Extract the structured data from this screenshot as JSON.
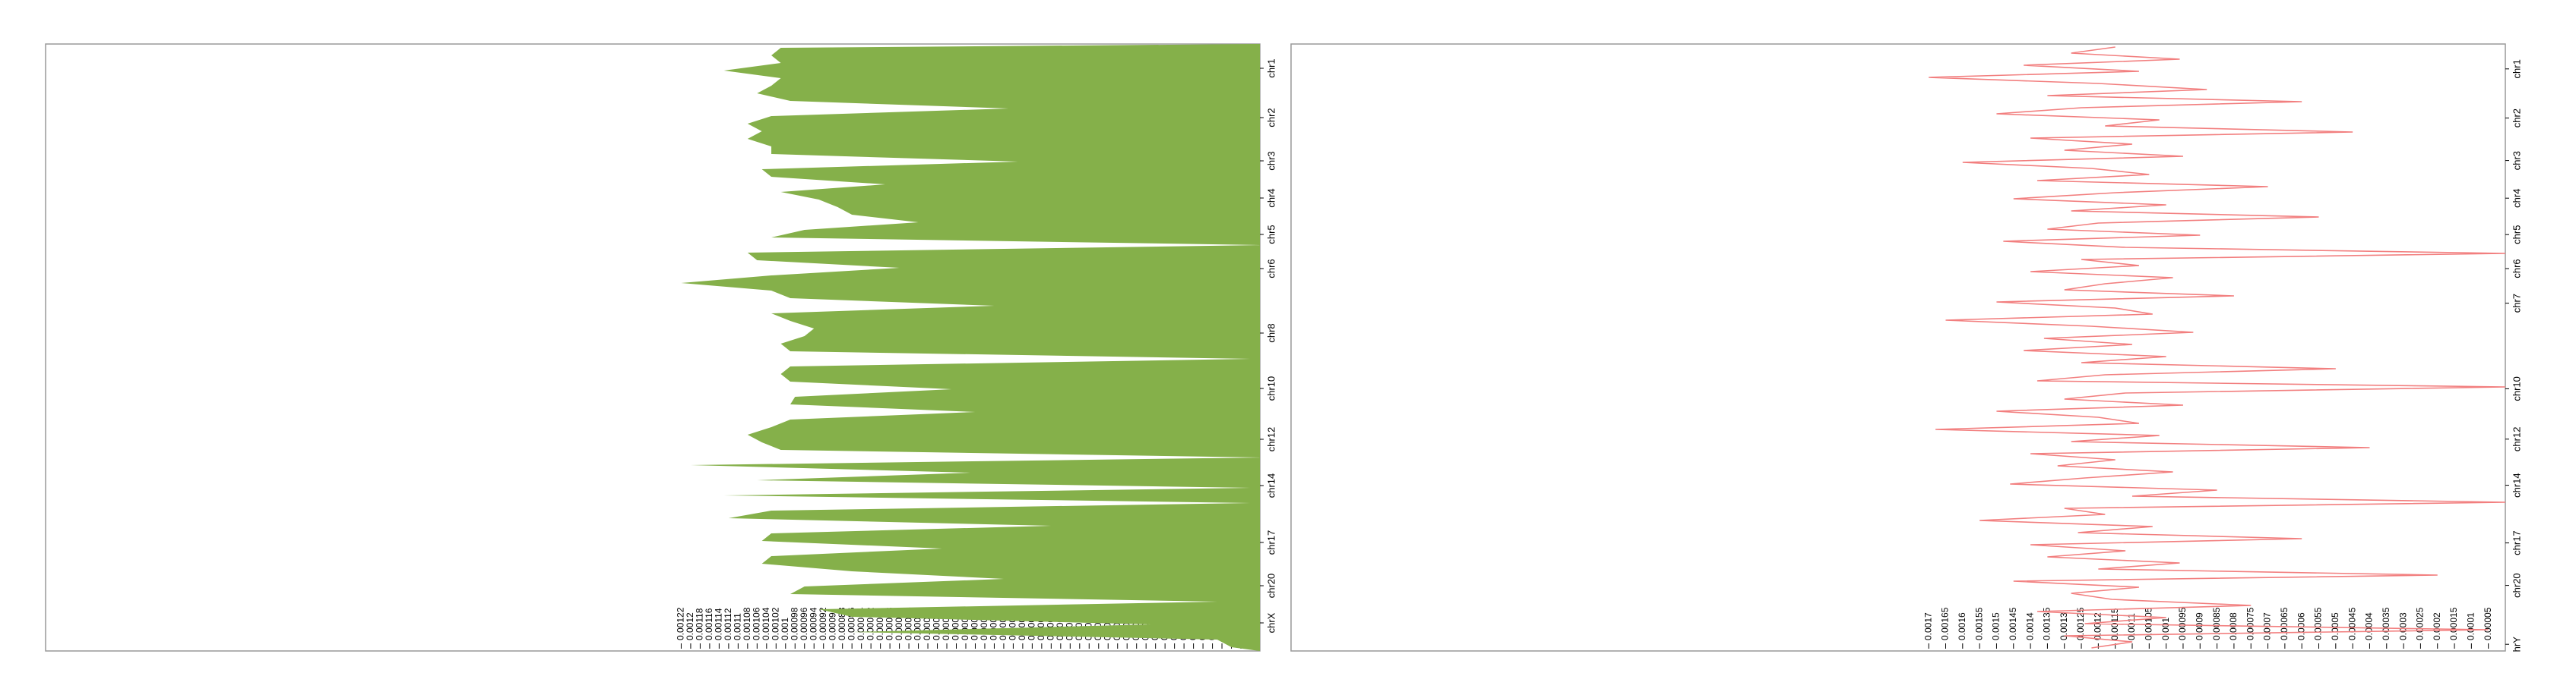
{
  "chart_data": [
    {
      "type": "area",
      "series": [
        {
          "color": "#85b04a",
          "values": [
            0.00101,
            0.00103,
            0.00101,
            0.00113,
            0.00101,
            0.00103,
            0.00106,
            0.00099,
            0.00053,
            0.00103,
            0.00108,
            0.00105,
            0.00108,
            0.00103,
            0.00103,
            0.00051,
            0.00105,
            0.00103,
            0.00079,
            0.00101,
            0.00093,
            0.00089,
            0.00086,
            0.00072,
            0.00096,
            0.00103,
            0,
            0.00108,
            0.00106,
            0.00076,
            0.00103,
            0.00122,
            0.00103,
            0.00099,
            0.00056,
            0.00103,
            0.00099,
            0.00094,
            0.00096,
            0.00101,
            0.00099,
            2e-05,
            0.00099,
            0.00101,
            0.00099,
            0.00065,
            0.00098,
            0.00099,
            0.0006,
            0.00099,
            0.00103,
            0.00108,
            0.00105,
            0.00101,
            0,
            0.0012,
            0.00061,
            0.00106,
            2e-05,
            0.00113,
            2e-05,
            0.00103,
            0.00112,
            0.00044,
            0.00103,
            0.00105,
            0.00067,
            0.00103,
            0.00105,
            0.00086,
            0.00054,
            0.00096,
            0.00099,
            9e-05,
            0.00093,
            0.00086,
            0.00023,
            0.00086,
            9e-05,
            6e-05
          ]
        }
      ],
      "xlim": [
        0.00256,
        0
      ],
      "xticks": [
        0.00122,
        0.0012,
        0.00118,
        0.00116,
        0.00114,
        0.00112,
        0.0011,
        0.00108,
        0.00106,
        0.00104,
        0.00102,
        0.001,
        0.00098,
        0.00096,
        0.00094,
        0.00092,
        0.0009,
        0.00088,
        0.00086,
        0.00084,
        0.00082,
        0.0008,
        0.00078,
        0.00076,
        0.00074,
        0.00072,
        0.0007,
        0.00068,
        0.00066,
        0.00064,
        0.00062,
        0.0006,
        0.00058,
        0.00056,
        0.00054,
        0.00052,
        0.0005,
        0.00048,
        0.00046,
        0.00044,
        0.00042,
        0.0004,
        0.00038,
        0.00036,
        0.00034,
        0.00032,
        0.0003,
        0.00028,
        0.00026,
        0.00024,
        0.00022,
        0.0002,
        0.00018,
        0.00016,
        0.00014,
        0.00012,
        0.0001,
        8e-05,
        6e-05,
        4e-05,
        2e-05
      ],
      "ylim": [
        80,
        0
      ],
      "yticks": [
        {
          "value": 3.2,
          "label": "chr1"
        },
        {
          "value": 9.7,
          "label": "chr2"
        },
        {
          "value": 15.4,
          "label": "chr3"
        },
        {
          "value": 20.3,
          "label": "chr4"
        },
        {
          "value": 25.1,
          "label": "chr5"
        },
        {
          "value": 29.6,
          "label": "chr6"
        },
        {
          "value": 38.1,
          "label": "chr8"
        },
        {
          "value": 45.4,
          "label": "chr10"
        },
        {
          "value": 52.1,
          "label": "chr12"
        },
        {
          "value": 58.2,
          "label": "chr14"
        },
        {
          "value": 65.7,
          "label": "chr17"
        },
        {
          "value": 71.4,
          "label": "chr20"
        },
        {
          "value": 76.3,
          "label": "chrX"
        }
      ]
    },
    {
      "type": "line",
      "series": [
        {
          "color": "#f27f7f",
          "values": [
            0.00115,
            0.00128,
            0.00096,
            0.00142,
            0.00108,
            0.0017,
            0.0012,
            0.00088,
            0.00135,
            0.0006,
            0.00125,
            0.0015,
            0.00102,
            0.00118,
            0.00045,
            0.0014,
            0.0011,
            0.0013,
            0.00095,
            0.0016,
            0.00122,
            0.00105,
            0.00138,
            0.0007,
            0.00115,
            0.00145,
            0.001,
            0.00128,
            0.00055,
            0.0012,
            0.00135,
            0.0009,
            0.00148,
            0.00112,
            0,
            0.00125,
            0.00108,
            0.0014,
            0.00098,
            0.00118,
            0.0013,
            0.0008,
            0.0015,
            0.00115,
            0.00104,
            0.00165,
            0.00122,
            0.00092,
            0.00136,
            0.0011,
            0.00142,
            0.001,
            0.00125,
            0.0005,
            0.00118,
            0.00138,
            0,
            0.00112,
            0.0013,
            0.00095,
            0.0015,
            0.0012,
            0.00108,
            0.00168,
            0.00102,
            0.00128,
            0.0004,
            0.0014,
            0.00115,
            0.00132,
            0.00098,
            0.00124,
            0.00146,
            0.00085,
            0.0011,
            0,
            0.0013,
            0.00118,
            0.00155,
            0.00104,
            0.00126,
            0.0006,
            0.0014,
            0.00112,
            0.00135,
            0.00096,
            0.0012,
            0.0002,
            0.00145,
            0.00108,
            0.00128,
            0.00116,
            0.00075,
            0.00138,
            0.001,
            0.00124,
            5e-05,
            0.0013,
            0.0011,
            0.00122
          ]
        }
      ],
      "xlim": [
        0.00358,
        0
      ],
      "xticks": [
        0.0017,
        0.00165,
        0.0016,
        0.00155,
        0.0015,
        0.00145,
        0.0014,
        0.00135,
        0.0013,
        0.00125,
        0.0012,
        0.00115,
        0.0011,
        0.00105,
        0.001,
        0.00095,
        0.0009,
        0.00085,
        0.0008,
        0.00075,
        0.0007,
        0.00065,
        0.0006,
        0.00055,
        0.0005,
        0.00045,
        0.0004,
        0.00035,
        0.0003,
        0.00025,
        0.0002,
        0.00015,
        0.0001,
        5e-05
      ],
      "ylim": [
        100,
        0
      ],
      "yticks": [
        {
          "value": 4.1,
          "label": "chr1"
        },
        {
          "value": 12.2,
          "label": "chr2"
        },
        {
          "value": 19.2,
          "label": "chr3"
        },
        {
          "value": 25.4,
          "label": "chr4"
        },
        {
          "value": 31.4,
          "label": "chr5"
        },
        {
          "value": 37,
          "label": "chr6"
        },
        {
          "value": 42.7,
          "label": "chr7"
        },
        {
          "value": 56.8,
          "label": "chr10"
        },
        {
          "value": 65.1,
          "label": "chr12"
        },
        {
          "value": 72.7,
          "label": "chr14"
        },
        {
          "value": 82.2,
          "label": "chr17"
        },
        {
          "value": 89.2,
          "label": "chr20"
        },
        {
          "value": 98.9,
          "label": "hrY"
        }
      ]
    }
  ]
}
